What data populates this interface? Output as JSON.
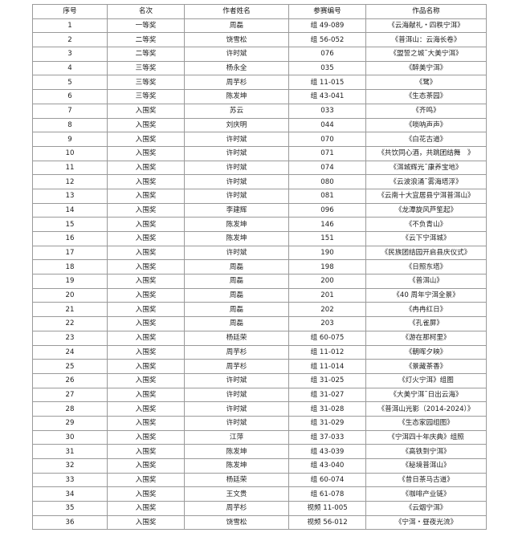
{
  "table": {
    "headers": [
      "序号",
      "名次",
      "作者姓名",
      "参赛编号",
      "作品名称"
    ],
    "rows": [
      [
        "1",
        "一等奖",
        "周磊",
        "组 49-089",
        "《云海献礼・四秩宁洱》"
      ],
      [
        "2",
        "二等奖",
        "饶雪松",
        "组 56-052",
        "《普洱山：云海长卷》"
      ],
      [
        "3",
        "二等奖",
        "许时斌",
        "076",
        "《盟誓之城˜大美宁洱》"
      ],
      [
        "4",
        "三等奖",
        "杨永全",
        "035",
        "《醉美宁洱》"
      ],
      [
        "5",
        "三等奖",
        "周芋杉",
        "组 11-015",
        "《鹭》"
      ],
      [
        "6",
        "三等奖",
        "陈发坤",
        "组 43-041",
        "《生态茶园》"
      ],
      [
        "7",
        "入围奖",
        "苏云",
        "033",
        "《齐鸣》"
      ],
      [
        "8",
        "入围奖",
        "刘庆明",
        "044",
        "《唢呐声声》"
      ],
      [
        "9",
        "入围奖",
        "许时斌",
        "070",
        "《白花古道》"
      ],
      [
        "10",
        "入围奖",
        "许时斌",
        "071",
        "《共饮同心酒，共跳团结舞　》"
      ],
      [
        "11",
        "入围奖",
        "许时斌",
        "074",
        "《洱城辉光˜康养宝地》"
      ],
      [
        "12",
        "入围奖",
        "许时斌",
        "080",
        "《云波浪涌˜雾海塔浮》"
      ],
      [
        "13",
        "入围奖",
        "许时斌",
        "081",
        "《云南十大宜居县宁洱普洱山》"
      ],
      [
        "14",
        "入围奖",
        "李建辉",
        "096",
        "《龙潭旋风芦笙起》"
      ],
      [
        "15",
        "入围奖",
        "陈发坤",
        "146",
        "《不负青山》"
      ],
      [
        "16",
        "入围奖",
        "陈发坤",
        "151",
        "《云下宁洱城》"
      ],
      [
        "17",
        "入围奖",
        "许时斌",
        "190",
        "《民族团结园开启县庆仪式》"
      ],
      [
        "18",
        "入围奖",
        "周磊",
        "198",
        "《日照东塔》"
      ],
      [
        "19",
        "入围奖",
        "周磊",
        "200",
        "《普洱山》"
      ],
      [
        "20",
        "入围奖",
        "周磊",
        "201",
        "《40 周年宁洱全景》"
      ],
      [
        "21",
        "入围奖",
        "周磊",
        "202",
        "《冉冉红日》"
      ],
      [
        "22",
        "入围奖",
        "周磊",
        "203",
        "《孔雀屏》"
      ],
      [
        "23",
        "入围奖",
        "杨廷荣",
        "组 60-075",
        "《游在那柯里》"
      ],
      [
        "24",
        "入围奖",
        "周芋杉",
        "组 11-012",
        "《朝晖夕映》"
      ],
      [
        "25",
        "入围奖",
        "周芋杉",
        "组 11-014",
        "《景藏茶香》"
      ],
      [
        "26",
        "入围奖",
        "许时斌",
        "组 31-025",
        "《灯火宁洱》组图"
      ],
      [
        "27",
        "入围奖",
        "许时斌",
        "组 31-027",
        "《大美宁洱˜日出云海》"
      ],
      [
        "28",
        "入围奖",
        "许时斌",
        "组 31-028",
        "《普洱山光影（2014-2024）》"
      ],
      [
        "29",
        "入围奖",
        "许时斌",
        "组 31-029",
        "《生态家园组图》"
      ],
      [
        "30",
        "入围奖",
        "江萍",
        "组 37-033",
        "《宁洱四十年庆典》组照"
      ],
      [
        "31",
        "入围奖",
        "陈发坤",
        "组 43-039",
        "《高铁到宁洱》"
      ],
      [
        "32",
        "入围奖",
        "陈发坤",
        "组 43-040",
        "《秘境普洱山》"
      ],
      [
        "33",
        "入围奖",
        "杨廷荣",
        "组 60-074",
        "《昔日茶马古道》"
      ],
      [
        "34",
        "入围奖",
        "王文贵",
        "组 61-078",
        "《咖啡产业链》"
      ],
      [
        "35",
        "入围奖",
        "周芋杉",
        "视频 11-005",
        "《云烟宁洱》"
      ],
      [
        "36",
        "入围奖",
        "饶雪松",
        "视频 56-012",
        "《宁洱・昼夜光流》"
      ]
    ]
  }
}
